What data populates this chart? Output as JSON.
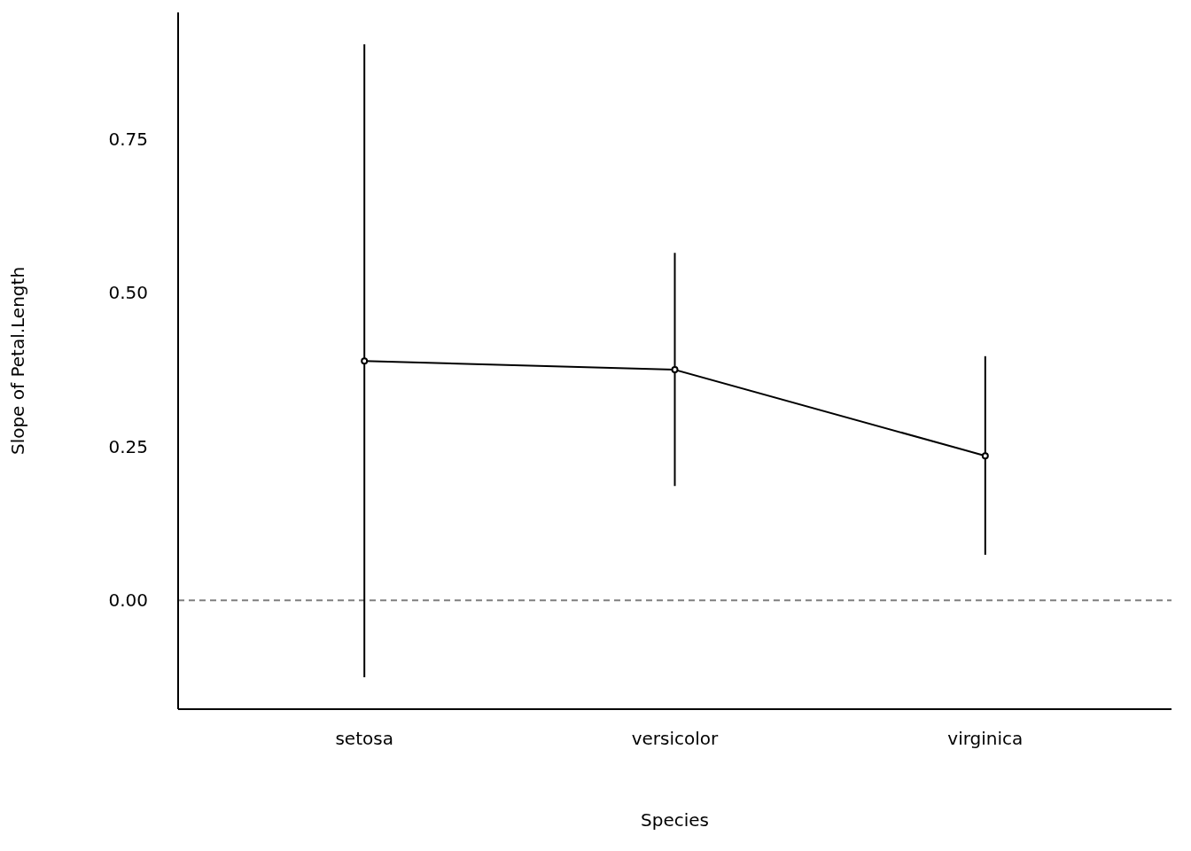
{
  "chart_data": {
    "type": "line",
    "xlabel": "Species",
    "ylabel": "Slope of Petal.Length",
    "categories": [
      "setosa",
      "versicolor",
      "virginica"
    ],
    "series": [
      {
        "color": "#000000",
        "values": [
          0.389,
          0.375,
          0.235
        ],
        "errors": [
          [
            -0.125,
            0.904
          ],
          [
            0.186,
            0.565
          ],
          [
            0.074,
            0.397
          ]
        ]
      }
    ],
    "ylim": [
      -0.177,
      0.956
    ],
    "yticks": [
      {
        "value": 0,
        "label": "0.00"
      },
      {
        "value": 0.25,
        "label": "0.25"
      },
      {
        "value": 0.5,
        "label": "0.50"
      },
      {
        "value": 0.75,
        "label": "0.75"
      }
    ],
    "ref_lines": [
      {
        "axis": "y",
        "value": 0,
        "color": "#808080",
        "line_style": "dashed"
      }
    ],
    "grid": false,
    "legend": false,
    "marker": "circle",
    "line_style": "solid"
  }
}
